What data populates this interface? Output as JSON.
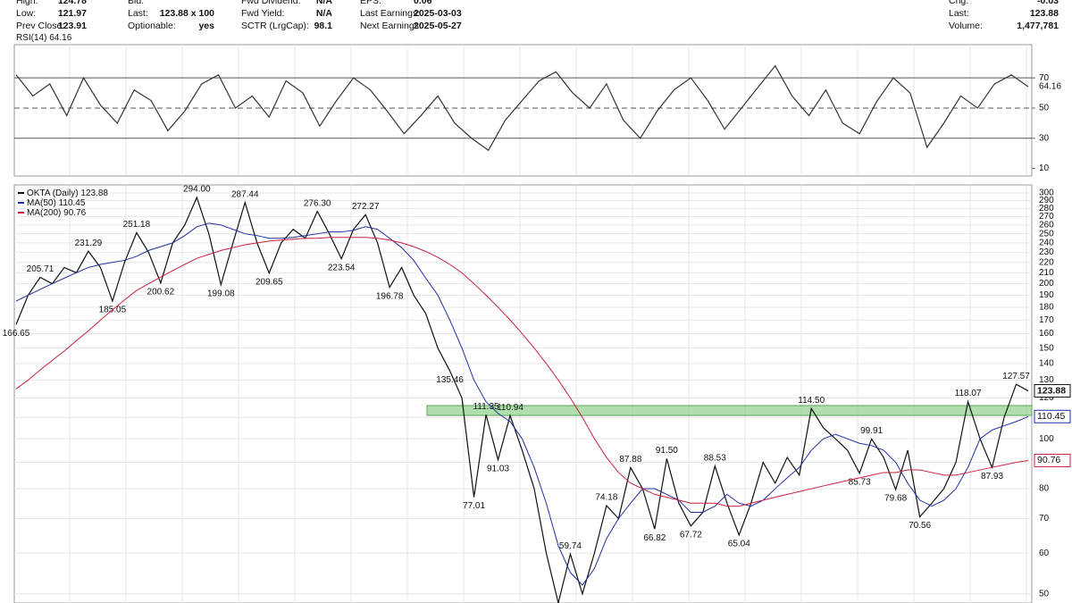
{
  "header": {
    "columns": [
      [
        [
          "High:",
          "124.78"
        ],
        [
          "Low:",
          "121.97"
        ],
        [
          "Prev Close:",
          "123.91"
        ]
      ],
      [
        [
          "Bid:",
          ""
        ],
        [
          "Last:",
          "123.88 x 100"
        ],
        [
          "Optionable:",
          "yes"
        ]
      ],
      [
        [
          "Fwd Dividend:",
          "N/A"
        ],
        [
          "Fwd Yield:",
          "N/A"
        ],
        [
          "SCTR (LrgCap):",
          "98.1"
        ]
      ],
      [
        [
          "EPS:",
          "0.06"
        ],
        [
          "Last Earnings:",
          "2025-03-03"
        ],
        [
          "Next Earnings:",
          "2025-05-27"
        ]
      ],
      [
        [
          "Chg:",
          "-0.03"
        ],
        [
          "Last:",
          "123.88"
        ],
        [
          "Volume:",
          "1,477,781"
        ]
      ]
    ]
  },
  "chart_data": [
    {
      "type": "line",
      "levels": [
        30,
        50,
        70
      ],
      "ylim": [
        5,
        92
      ],
      "yticks": [
        10,
        30,
        50,
        70
      ],
      "series": [
        {
          "name": "RSI(14)",
          "color": "#333333",
          "values": [
            72,
            58,
            66,
            45,
            70,
            52,
            40,
            62,
            55,
            35,
            48,
            66,
            72,
            50,
            58,
            44,
            68,
            60,
            38,
            55,
            70,
            62,
            48,
            33,
            45,
            58,
            40,
            30,
            22,
            42,
            55,
            68,
            74,
            60,
            50,
            66,
            42,
            30,
            48,
            62,
            70,
            55,
            36,
            50,
            64,
            78,
            58,
            45,
            62,
            40,
            33,
            54,
            70,
            60,
            24,
            40,
            58,
            50,
            66,
            72,
            64.16
          ]
        }
      ]
    },
    {
      "type": "line",
      "log_scale": true,
      "ylim": [
        48,
        311
      ],
      "yticks": [
        50,
        60,
        70,
        80,
        90,
        100,
        110,
        120,
        130,
        140,
        150,
        160,
        170,
        180,
        190,
        200,
        210,
        220,
        230,
        240,
        250,
        260,
        270,
        280,
        290,
        300
      ],
      "zone": {
        "from": 111,
        "to": 116,
        "color": "#8fd18a"
      },
      "series": [
        {
          "name": "OKTA (Daily)",
          "color": "#111111",
          "values": [
            166.65,
            190,
            205.71,
            200,
            215,
            210,
            231.29,
            215,
            185.05,
            220,
            251.18,
            230,
            200.62,
            240,
            260,
            294.0,
            250,
            199.08,
            240,
            287.44,
            240,
            209.65,
            240,
            255,
            245,
            276.3,
            250,
            223.54,
            255,
            272.27,
            240,
            196.78,
            215,
            190,
            175,
            150,
            135.46,
            120,
            77.01,
            111.35,
            91.03,
            110.94,
            95,
            80,
            60,
            48,
            59.74,
            50,
            60,
            74.18,
            70,
            87.88,
            80,
            66.82,
            91.5,
            75,
            67.72,
            72,
            88.53,
            75,
            65.04,
            75,
            90,
            82,
            92,
            85,
            114.5,
            105,
            100,
            95,
            85.73,
            99.91,
            92,
            79.68,
            95,
            70.56,
            75,
            80,
            90,
            118.07,
            100,
            87.93,
            110,
            127.57,
            123.88
          ],
          "value_labels": [
            "166.65",
            null,
            "205.71",
            null,
            null,
            null,
            "231.29",
            null,
            "185.05",
            null,
            "251.18",
            null,
            "200.62",
            null,
            null,
            "294.00",
            null,
            "199.08",
            null,
            "287.44",
            null,
            "209.65",
            null,
            null,
            null,
            "276.30",
            null,
            "223.54",
            null,
            "272.27",
            null,
            "196.78",
            null,
            null,
            null,
            null,
            "135.46",
            null,
            "77.01",
            "111.35",
            "91.03",
            "110.94",
            null,
            null,
            null,
            null,
            "59.74",
            null,
            null,
            "74.18",
            null,
            "87.88",
            null,
            "66.82",
            "91.50",
            null,
            "67.72",
            null,
            "88.53",
            null,
            "65.04",
            null,
            null,
            null,
            null,
            null,
            "114.50",
            null,
            null,
            null,
            "85.73",
            "99.91",
            null,
            "79.68",
            null,
            "70.56",
            null,
            null,
            null,
            "118.07",
            null,
            "87.93",
            null,
            "127.57",
            null
          ]
        },
        {
          "name": "MA(50)",
          "color": "#1f2fa0",
          "values": [
            185,
            190,
            195,
            200,
            205,
            210,
            215,
            218,
            220,
            222,
            226,
            232,
            236,
            240,
            248,
            258,
            262,
            260,
            255,
            250,
            248,
            245,
            245,
            246,
            248,
            250,
            252,
            252,
            254,
            258,
            255,
            245,
            235,
            222,
            205,
            190,
            170,
            150,
            130,
            118,
            112,
            108,
            100,
            88,
            75,
            62,
            55,
            52,
            56,
            64,
            70,
            75,
            80,
            80,
            78,
            76,
            72,
            72,
            74,
            78,
            75,
            74,
            76,
            80,
            84,
            88,
            95,
            100,
            102,
            100,
            98,
            97,
            95,
            90,
            82,
            76,
            74,
            76,
            80,
            88,
            100,
            104,
            106,
            108,
            110.45
          ]
        },
        {
          "name": "MA(200)",
          "color": "#c8203c",
          "values": [
            125,
            130,
            136,
            142,
            148,
            155,
            162,
            170,
            178,
            186,
            194,
            200,
            206,
            212,
            218,
            224,
            228,
            232,
            235,
            238,
            240,
            242,
            243,
            244,
            245,
            245,
            246,
            246,
            246,
            246,
            245,
            243,
            240,
            236,
            231,
            225,
            218,
            210,
            200,
            190,
            180,
            170,
            160,
            150,
            140,
            130,
            120,
            110,
            100,
            92,
            86,
            82,
            80,
            78,
            77,
            76,
            75,
            75,
            75,
            74,
            74,
            75,
            76,
            77,
            78,
            79,
            80,
            81,
            82,
            83,
            84,
            85,
            86,
            86,
            87,
            87,
            86,
            85,
            85,
            86,
            87,
            88,
            89,
            90,
            90.76
          ]
        }
      ]
    }
  ]
}
